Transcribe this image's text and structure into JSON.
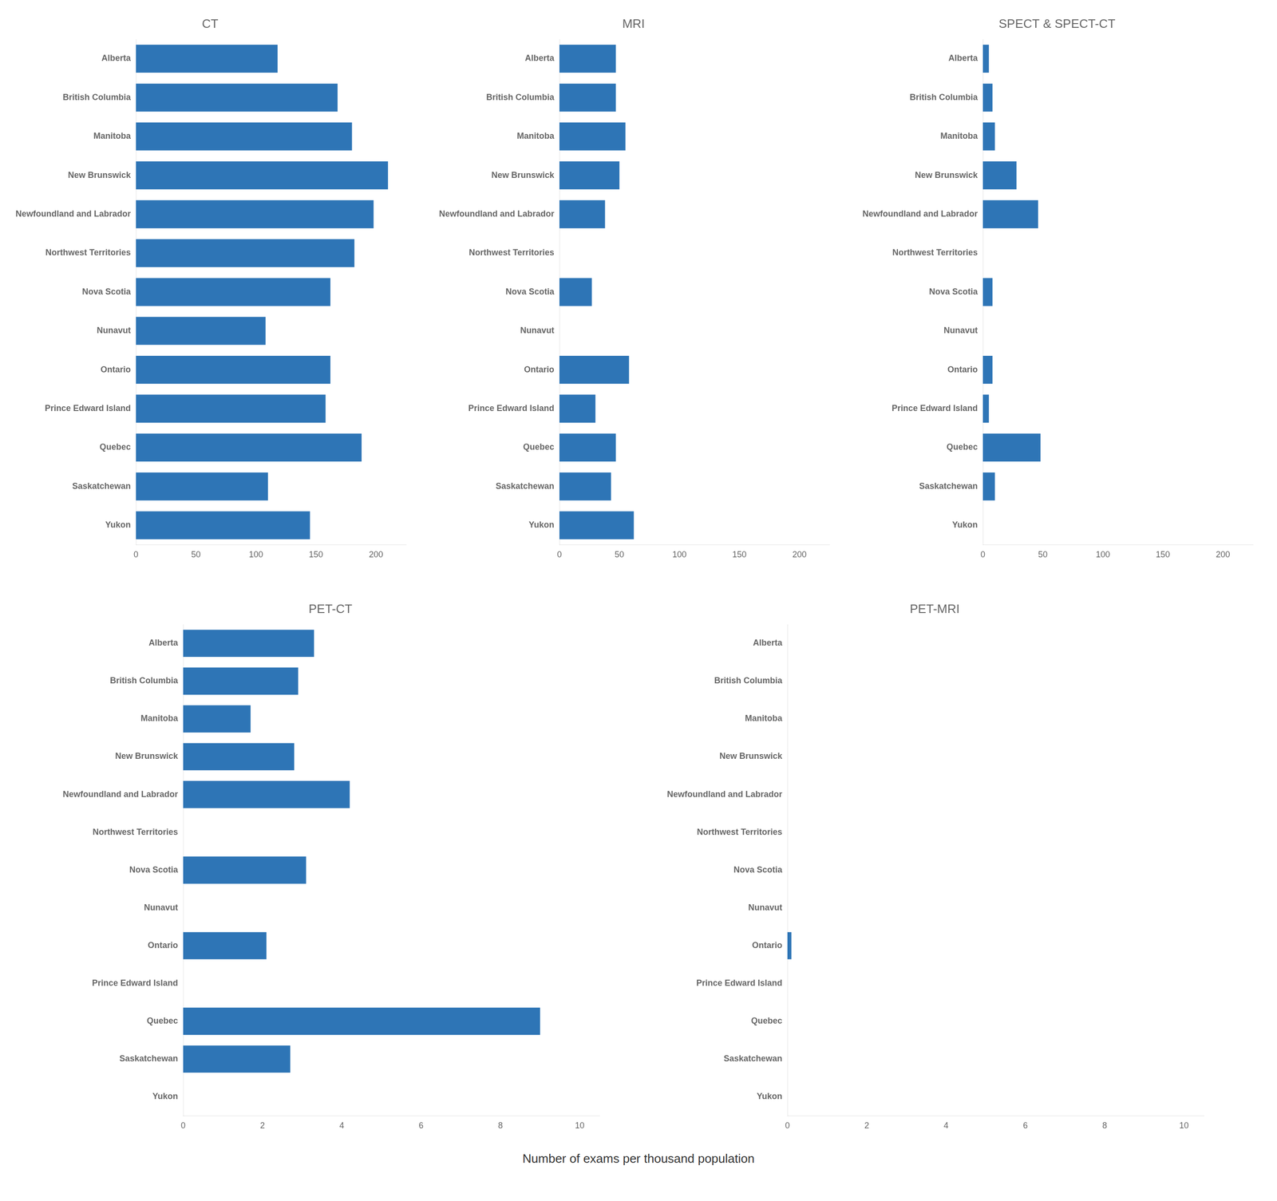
{
  "xlabel": "Number of exams per thousand population",
  "chart_data": [
    {
      "type": "bar",
      "orientation": "horizontal",
      "title": "CT",
      "categories": [
        "Alberta",
        "British Columbia",
        "Manitoba",
        "New Brunswick",
        "Newfoundland and Labrador",
        "Northwest Territories",
        "Nova Scotia",
        "Nunavut",
        "Ontario",
        "Prince Edward Island",
        "Quebec",
        "Saskatchewan",
        "Yukon"
      ],
      "values": [
        118,
        168,
        180,
        210,
        198,
        182,
        162,
        108,
        162,
        158,
        188,
        110,
        145
      ],
      "color": "#2e75b6",
      "xlim": [
        0,
        225
      ],
      "xticks": [
        0,
        50,
        100,
        150,
        200
      ],
      "grid": false
    },
    {
      "type": "bar",
      "orientation": "horizontal",
      "title": "MRI",
      "categories": [
        "Alberta",
        "British Columbia",
        "Manitoba",
        "New Brunswick",
        "Newfoundland and Labrador",
        "Northwest Territories",
        "Nova Scotia",
        "Nunavut",
        "Ontario",
        "Prince Edward Island",
        "Quebec",
        "Saskatchewan",
        "Yukon"
      ],
      "values": [
        47,
        47,
        55,
        50,
        38,
        0,
        27,
        0,
        58,
        30,
        47,
        43,
        62
      ],
      "color": "#2e75b6",
      "xlim": [
        0,
        225
      ],
      "xticks": [
        0,
        50,
        100,
        150,
        200
      ],
      "grid": false
    },
    {
      "type": "bar",
      "orientation": "horizontal",
      "title": "SPECT & SPECT-CT",
      "categories": [
        "Alberta",
        "British Columbia",
        "Manitoba",
        "New Brunswick",
        "Newfoundland and Labrador",
        "Northwest Territories",
        "Nova Scotia",
        "Nunavut",
        "Ontario",
        "Prince Edward Island",
        "Quebec",
        "Saskatchewan",
        "Yukon"
      ],
      "values": [
        5,
        8,
        10,
        28,
        46,
        0,
        8,
        0,
        8,
        5,
        48,
        10,
        0
      ],
      "color": "#2e75b6",
      "xlim": [
        0,
        225
      ],
      "xticks": [
        0,
        50,
        100,
        150,
        200
      ],
      "grid": false
    },
    {
      "type": "bar",
      "orientation": "horizontal",
      "title": "PET-CT",
      "categories": [
        "Alberta",
        "British Columbia",
        "Manitoba",
        "New Brunswick",
        "Newfoundland and Labrador",
        "Northwest Territories",
        "Nova Scotia",
        "Nunavut",
        "Ontario",
        "Prince Edward Island",
        "Quebec",
        "Saskatchewan",
        "Yukon"
      ],
      "values": [
        3.3,
        2.9,
        1.7,
        2.8,
        4.2,
        0,
        3.1,
        0,
        2.1,
        0,
        9.0,
        2.7,
        0
      ],
      "color": "#2e75b6",
      "xlim": [
        0,
        10.5
      ],
      "xticks": [
        0,
        2,
        4,
        6,
        8,
        10
      ],
      "grid": false
    },
    {
      "type": "bar",
      "orientation": "horizontal",
      "title": "PET-MRI",
      "categories": [
        "Alberta",
        "British Columbia",
        "Manitoba",
        "New Brunswick",
        "Newfoundland and Labrador",
        "Northwest Territories",
        "Nova Scotia",
        "Nunavut",
        "Ontario",
        "Prince Edward Island",
        "Quebec",
        "Saskatchewan",
        "Yukon"
      ],
      "values": [
        0,
        0,
        0,
        0,
        0,
        0,
        0,
        0,
        0.1,
        0,
        0,
        0,
        0
      ],
      "color": "#2e75b6",
      "xlim": [
        0,
        10.5
      ],
      "xticks": [
        0,
        2,
        4,
        6,
        8,
        10
      ],
      "grid": false
    }
  ]
}
